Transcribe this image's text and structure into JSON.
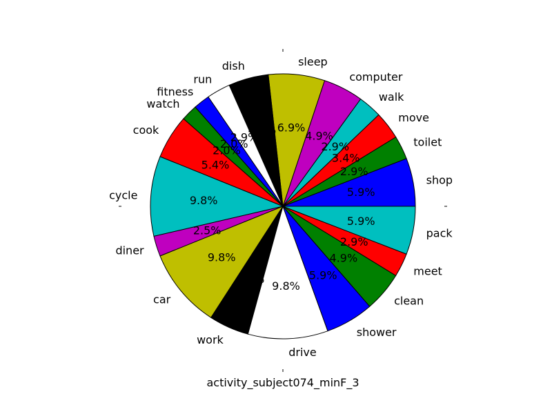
{
  "chart_data": {
    "type": "pie",
    "xlabel": "activity_subject074_minF_3",
    "start_angle_deg": 0,
    "direction": "counterclockwise",
    "slices": [
      {
        "label": "shop",
        "value": 5.9,
        "pct_label": "5.9%",
        "color": "#0000ff"
      },
      {
        "label": "toilet",
        "value": 2.9,
        "pct_label": "2.9%",
        "color": "#008000"
      },
      {
        "label": "move",
        "value": 3.4,
        "pct_label": "3.4%",
        "color": "#ff0000"
      },
      {
        "label": "walk",
        "value": 2.9,
        "pct_label": "2.9%",
        "color": "#00bfbf"
      },
      {
        "label": "computer",
        "value": 4.9,
        "pct_label": "4.9%",
        "color": "#bf00bf"
      },
      {
        "label": "sleep",
        "value": 6.9,
        "pct_label": "6.9%",
        "color": "#bfbf00"
      },
      {
        "label": "dish",
        "value": 4.9,
        "pct_label": "4.9%",
        "color": "#000000"
      },
      {
        "label": "run",
        "value": 2.9,
        "pct_label": "2.9%",
        "color": "#ffffff"
      },
      {
        "label": "fitness",
        "value": 2.0,
        "pct_label": "2.0%",
        "color": "#0000ff"
      },
      {
        "label": "watch",
        "value": 2.0,
        "pct_label": "2.0%",
        "color": "#008000"
      },
      {
        "label": "cook",
        "value": 5.4,
        "pct_label": "5.4%",
        "color": "#ff0000"
      },
      {
        "label": "cycle",
        "value": 9.8,
        "pct_label": "9.8%",
        "color": "#00bfbf"
      },
      {
        "label": "diner",
        "value": 2.5,
        "pct_label": "2.5%",
        "color": "#bf00bf"
      },
      {
        "label": "car",
        "value": 9.8,
        "pct_label": "9.8%",
        "color": "#bfbf00"
      },
      {
        "label": "work",
        "value": 4.9,
        "pct_label": "4.9%",
        "color": "#000000"
      },
      {
        "label": "drive",
        "value": 9.8,
        "pct_label": "9.8%",
        "color": "#ffffff"
      },
      {
        "label": "shower",
        "value": 5.9,
        "pct_label": "5.9%",
        "color": "#0000ff"
      },
      {
        "label": "clean",
        "value": 4.9,
        "pct_label": "4.9%",
        "color": "#008000"
      },
      {
        "label": "meet",
        "value": 2.9,
        "pct_label": "2.9%",
        "color": "#ff0000"
      },
      {
        "label": "pack",
        "value": 5.9,
        "pct_label": "5.9%",
        "color": "#00bfbf"
      }
    ]
  }
}
